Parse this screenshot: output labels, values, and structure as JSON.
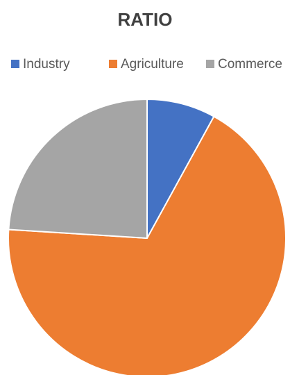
{
  "chart_data": {
    "type": "pie",
    "title": "RATIO",
    "categories": [
      "Industry",
      "Agriculture",
      "Commerce"
    ],
    "values": [
      8,
      68,
      24
    ],
    "colors": [
      "#4472c4",
      "#ed7d31",
      "#a5a5a5"
    ],
    "legend": "top"
  }
}
